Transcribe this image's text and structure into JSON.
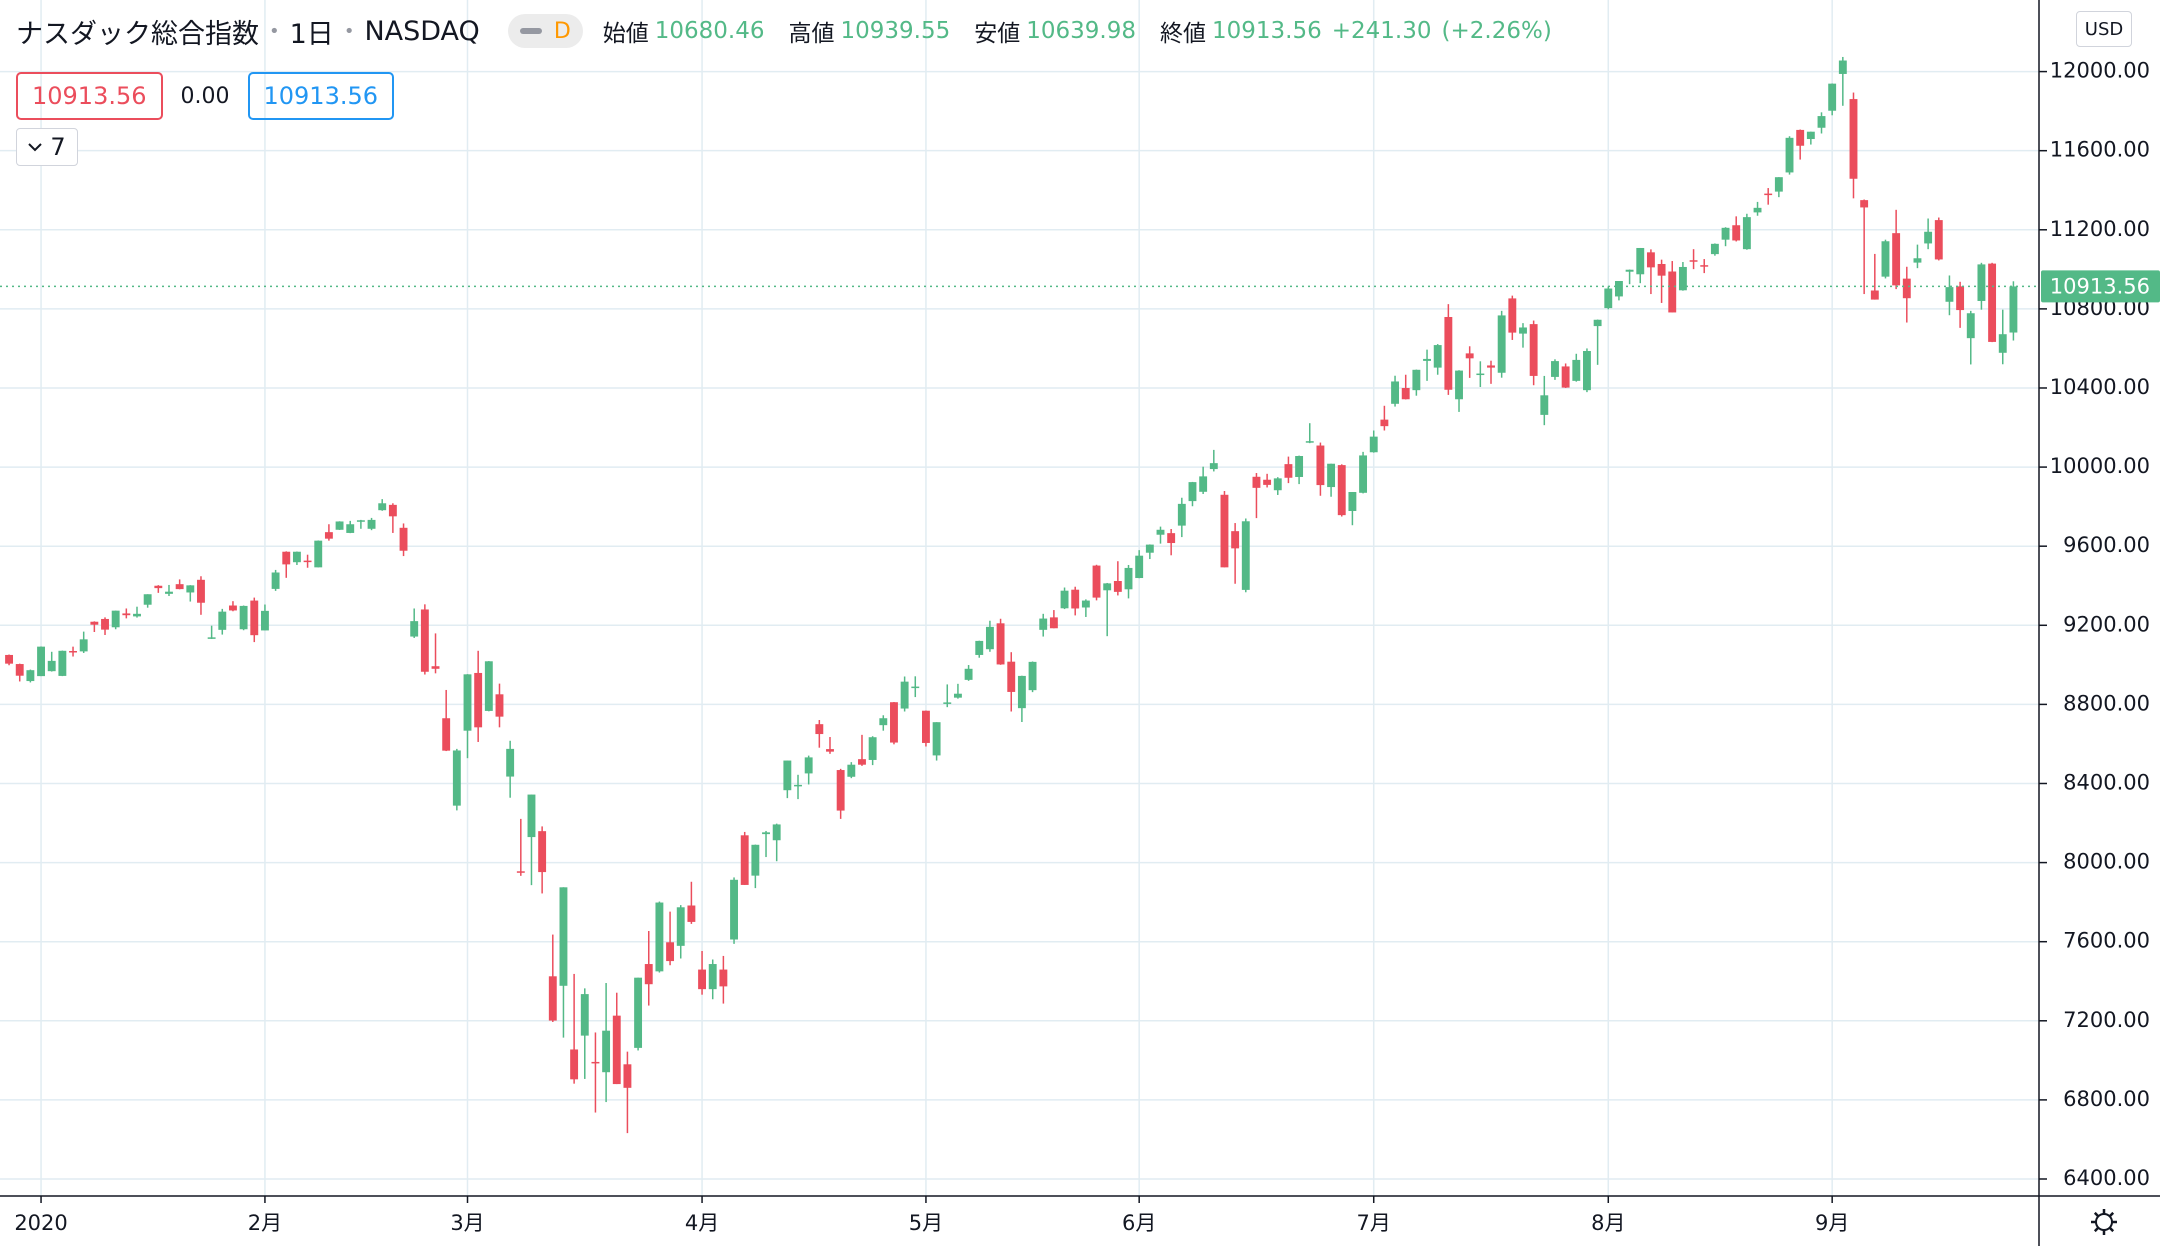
{
  "chart_data": {
    "type": "candlestick",
    "title": "ナスダック総合指数",
    "interval": "1日",
    "exchange": "NASDAQ",
    "badge": "D",
    "currency": "USD",
    "legend": [
      {
        "label": "始値",
        "value": "10680.46"
      },
      {
        "label": "高値",
        "value": "10939.55"
      },
      {
        "label": "安値",
        "value": "10639.98"
      },
      {
        "label": "終値",
        "value": "10913.56"
      }
    ],
    "change": "+241.30",
    "change_pct": "(+2.26%)",
    "price_boxes": [
      "10913.56",
      "0.00",
      "10913.56"
    ],
    "indicator_count": "7",
    "up_color": "#53b987",
    "down_color": "#eb4d5c",
    "grid": true,
    "last_price": 10913.56,
    "ylim": [
      6314,
      12362
    ],
    "yticks": [
      {
        "value": 6400,
        "label": "6400.00"
      },
      {
        "value": 6800,
        "label": "6800.00"
      },
      {
        "value": 7200,
        "label": "7200.00"
      },
      {
        "value": 7600,
        "label": "7600.00"
      },
      {
        "value": 8000,
        "label": "8000.00"
      },
      {
        "value": 8400,
        "label": "8400.00"
      },
      {
        "value": 8800,
        "label": "8800.00"
      },
      {
        "value": 9200,
        "label": "9200.00"
      },
      {
        "value": 9600,
        "label": "9600.00"
      },
      {
        "value": 10000,
        "label": "10000.00"
      },
      {
        "value": 10400,
        "label": "10400.00"
      },
      {
        "value": 10800,
        "label": "10800.00"
      },
      {
        "value": 11200,
        "label": "11200.00"
      },
      {
        "value": 11600,
        "label": "11600.00"
      },
      {
        "value": 12000,
        "label": "12000.00"
      }
    ],
    "xlim": [
      -0.85,
      190.4
    ],
    "xticks": [
      {
        "value": 3,
        "label": "2020"
      },
      {
        "value": 24,
        "label": "2月"
      },
      {
        "value": 43,
        "label": "3月"
      },
      {
        "value": 65,
        "label": "4月"
      },
      {
        "value": 86,
        "label": "5月"
      },
      {
        "value": 106,
        "label": "6月"
      },
      {
        "value": 128,
        "label": "7月"
      },
      {
        "value": 150,
        "label": "8月"
      },
      {
        "value": 171,
        "label": "9月"
      }
    ],
    "ohlc": [
      [
        9050,
        9052,
        8998,
        9006
      ],
      [
        9004,
        9006,
        8916,
        8945
      ],
      [
        8918,
        8976,
        8911,
        8973
      ],
      [
        8943,
        9093,
        8943,
        9092
      ],
      [
        8968,
        9066,
        8966,
        9020
      ],
      [
        8944,
        9072,
        8943,
        9071
      ],
      [
        9070,
        9092,
        9042,
        9068
      ],
      [
        9068,
        9168,
        9060,
        9129
      ],
      [
        9218,
        9220,
        9166,
        9203
      ],
      [
        9232,
        9240,
        9151,
        9178
      ],
      [
        9190,
        9274,
        9180,
        9274
      ],
      [
        9260,
        9285,
        9235,
        9251
      ],
      [
        9245,
        9294,
        9239,
        9258
      ],
      [
        9304,
        9357,
        9289,
        9357
      ],
      [
        9400,
        9403,
        9364,
        9388
      ],
      [
        9359,
        9404,
        9348,
        9370
      ],
      [
        9408,
        9432,
        9382,
        9383
      ],
      [
        9366,
        9403,
        9320,
        9402
      ],
      [
        9430,
        9448,
        9253,
        9314
      ],
      [
        9134,
        9198,
        9131,
        9139
      ],
      [
        9177,
        9283,
        9153,
        9269
      ],
      [
        9300,
        9322,
        9271,
        9275
      ],
      [
        9180,
        9300,
        9175,
        9298
      ],
      [
        9325,
        9340,
        9115,
        9150
      ],
      [
        9174,
        9305,
        9174,
        9273
      ],
      [
        9384,
        9480,
        9374,
        9467
      ],
      [
        9572,
        9574,
        9440,
        9508
      ],
      [
        9519,
        9573,
        9505,
        9572
      ],
      [
        9527,
        9557,
        9491,
        9520
      ],
      [
        9493,
        9629,
        9493,
        9628
      ],
      [
        9671,
        9711,
        9628,
        9638
      ],
      [
        9683,
        9726,
        9682,
        9725
      ],
      [
        9667,
        9728,
        9666,
        9711
      ],
      [
        9724,
        9733,
        9688,
        9731
      ],
      [
        9688,
        9743,
        9681,
        9733
      ],
      [
        9782,
        9838,
        9779,
        9817
      ],
      [
        9809,
        9817,
        9667,
        9751
      ],
      [
        9693,
        9715,
        9550,
        9577
      ],
      [
        9143,
        9285,
        9136,
        9221
      ],
      [
        9280,
        9306,
        8951,
        8965
      ],
      [
        8993,
        9159,
        8957,
        8980
      ],
      [
        8730,
        8873,
        8564,
        8566
      ],
      [
        8288,
        8575,
        8264,
        8567
      ],
      [
        8667,
        8953,
        8528,
        8952
      ],
      [
        8959,
        9071,
        8610,
        8684
      ],
      [
        8767,
        9019,
        8765,
        9018
      ],
      [
        8851,
        8905,
        8684,
        8738
      ],
      [
        8435,
        8616,
        8328,
        8575
      ],
      [
        7956,
        8221,
        7933,
        7950
      ],
      [
        8129,
        8344,
        7886,
        8344
      ],
      [
        8159,
        8183,
        7844,
        7952
      ],
      [
        7425,
        7636,
        7194,
        7201
      ],
      [
        7377,
        7875,
        7115,
        7875
      ],
      [
        7055,
        7437,
        6882,
        6904
      ],
      [
        7125,
        7364,
        6906,
        7335
      ],
      [
        6992,
        7141,
        6736,
        6989
      ],
      [
        6940,
        7391,
        6789,
        7150
      ],
      [
        7226,
        7342,
        6880,
        6880
      ],
      [
        6980,
        7044,
        6632,
        6861
      ],
      [
        7063,
        7418,
        7050,
        7418
      ],
      [
        7487,
        7654,
        7277,
        7385
      ],
      [
        7450,
        7803,
        7444,
        7798
      ],
      [
        7597,
        7752,
        7481,
        7502
      ],
      [
        7579,
        7785,
        7515,
        7774
      ],
      [
        7783,
        7903,
        7690,
        7700
      ],
      [
        7459,
        7553,
        7332,
        7360
      ],
      [
        7360,
        7510,
        7309,
        7487
      ],
      [
        7459,
        7528,
        7287,
        7374
      ],
      [
        7611,
        7925,
        7589,
        7913
      ],
      [
        8138,
        8155,
        7887,
        7887
      ],
      [
        7934,
        8091,
        7871,
        8090
      ],
      [
        8144,
        8160,
        8028,
        8153
      ],
      [
        8113,
        8197,
        8007,
        8193
      ],
      [
        8366,
        8516,
        8326,
        8516
      ],
      [
        8388,
        8444,
        8321,
        8393
      ],
      [
        8451,
        8541,
        8395,
        8532
      ],
      [
        8700,
        8721,
        8581,
        8650
      ],
      [
        8574,
        8635,
        8550,
        8561
      ],
      [
        8468,
        8474,
        8221,
        8263
      ],
      [
        8434,
        8508,
        8427,
        8495
      ],
      [
        8523,
        8646,
        8489,
        8495
      ],
      [
        8519,
        8639,
        8493,
        8634
      ],
      [
        8695,
        8745,
        8667,
        8730
      ],
      [
        8811,
        8812,
        8598,
        8607
      ],
      [
        8779,
        8941,
        8764,
        8915
      ],
      [
        8887,
        8942,
        8837,
        8890
      ],
      [
        8768,
        8769,
        8587,
        8605
      ],
      [
        8542,
        8710,
        8516,
        8710
      ],
      [
        8807,
        8901,
        8786,
        8810
      ],
      [
        8834,
        8904,
        8829,
        8854
      ],
      [
        8924,
        8999,
        8919,
        8980
      ],
      [
        9050,
        9122,
        9036,
        9121
      ],
      [
        9079,
        9223,
        9066,
        9192
      ],
      [
        9210,
        9233,
        9000,
        9002
      ],
      [
        9016,
        9064,
        8764,
        8863
      ],
      [
        8781,
        8945,
        8711,
        8944
      ],
      [
        8872,
        9017,
        8862,
        9015
      ],
      [
        9177,
        9258,
        9143,
        9234
      ],
      [
        9240,
        9277,
        9185,
        9185
      ],
      [
        9286,
        9391,
        9282,
        9375
      ],
      [
        9380,
        9395,
        9250,
        9285
      ],
      [
        9290,
        9331,
        9242,
        9325
      ],
      [
        9502,
        9506,
        9326,
        9340
      ],
      [
        9377,
        9414,
        9145,
        9412
      ],
      [
        9424,
        9524,
        9351,
        9369
      ],
      [
        9382,
        9505,
        9336,
        9490
      ],
      [
        9439,
        9580,
        9438,
        9552
      ],
      [
        9567,
        9609,
        9535,
        9608
      ],
      [
        9658,
        9699,
        9613,
        9683
      ],
      [
        9666,
        9687,
        9554,
        9616
      ],
      [
        9704,
        9845,
        9646,
        9814
      ],
      [
        9828,
        9925,
        9802,
        9924
      ],
      [
        9875,
        10002,
        9864,
        9953
      ],
      [
        9990,
        10087,
        9978,
        10020
      ],
      [
        9860,
        9879,
        9493,
        9493
      ],
      [
        9676,
        9717,
        9410,
        9589
      ],
      [
        9379,
        9740,
        9367,
        9726
      ],
      [
        9951,
        9970,
        9742,
        9895
      ],
      [
        9936,
        9966,
        9897,
        9910
      ],
      [
        9883,
        9949,
        9859,
        9943
      ],
      [
        10015,
        10053,
        9919,
        9946
      ],
      [
        9950,
        10058,
        9914,
        10056
      ],
      [
        10130,
        10222,
        10121,
        10131
      ],
      [
        10109,
        10124,
        9855,
        9909
      ],
      [
        9899,
        10017,
        9850,
        10017
      ],
      [
        10010,
        10014,
        9750,
        9757
      ],
      [
        9778,
        9874,
        9706,
        9874
      ],
      [
        9870,
        10077,
        9867,
        10059
      ],
      [
        10075,
        10185,
        10073,
        10154
      ],
      [
        10240,
        10310,
        10185,
        10207
      ],
      [
        10320,
        10462,
        10306,
        10433
      ],
      [
        10400,
        10467,
        10342,
        10343
      ],
      [
        10389,
        10493,
        10361,
        10492
      ],
      [
        10537,
        10594,
        10436,
        10547
      ],
      [
        10503,
        10622,
        10467,
        10617
      ],
      [
        10759,
        10824,
        10365,
        10391
      ],
      [
        10343,
        10490,
        10279,
        10488
      ],
      [
        10575,
        10611,
        10451,
        10550
      ],
      [
        10467,
        10535,
        10405,
        10473
      ],
      [
        10514,
        10538,
        10421,
        10503
      ],
      [
        10477,
        10790,
        10452,
        10767
      ],
      [
        10853,
        10867,
        10643,
        10680
      ],
      [
        10675,
        10728,
        10604,
        10706
      ],
      [
        10723,
        10741,
        10414,
        10461
      ],
      [
        10264,
        10461,
        10212,
        10363
      ],
      [
        10456,
        10545,
        10441,
        10536
      ],
      [
        10509,
        10524,
        10400,
        10402
      ],
      [
        10436,
        10573,
        10432,
        10542
      ],
      [
        10389,
        10600,
        10379,
        10587
      ],
      [
        10713,
        10746,
        10517,
        10745
      ],
      [
        10804,
        10913,
        10798,
        10903
      ],
      [
        10863,
        10941,
        10843,
        10941
      ],
      [
        10988,
        10999,
        10925,
        10998
      ],
      [
        10975,
        11108,
        10930,
        11108
      ],
      [
        11086,
        11101,
        10875,
        11010
      ],
      [
        11027,
        11049,
        10830,
        10968
      ],
      [
        10989,
        11042,
        10782,
        10782
      ],
      [
        10894,
        11037,
        10892,
        11012
      ],
      [
        11046,
        11102,
        11001,
        11042
      ],
      [
        11021,
        11052,
        10981,
        11019
      ],
      [
        11077,
        11131,
        11069,
        11129
      ],
      [
        11150,
        11213,
        11117,
        11210
      ],
      [
        11223,
        11268,
        11141,
        11146
      ],
      [
        11102,
        11281,
        11099,
        11264
      ],
      [
        11288,
        11341,
        11271,
        11311
      ],
      [
        11383,
        11411,
        11327,
        11379
      ],
      [
        11393,
        11466,
        11365,
        11466
      ],
      [
        11490,
        11673,
        11479,
        11665
      ],
      [
        11705,
        11707,
        11555,
        11625
      ],
      [
        11659,
        11696,
        11631,
        11696
      ],
      [
        11716,
        11794,
        11687,
        11775
      ],
      [
        11802,
        11940,
        11779,
        11939
      ],
      [
        11988,
        12074,
        11827,
        12056
      ],
      [
        11861,
        11894,
        11359,
        11458
      ],
      [
        11350,
        11353,
        10875,
        11313
      ],
      [
        10893,
        11078,
        10847,
        10847
      ],
      [
        10963,
        11150,
        10954,
        11142
      ],
      [
        11183,
        11301,
        10900,
        10919
      ],
      [
        10953,
        11013,
        10731,
        10854
      ],
      [
        11034,
        11125,
        11006,
        11056
      ],
      [
        11131,
        11257,
        11102,
        11190
      ],
      [
        11249,
        11262,
        11045,
        11050
      ],
      [
        10836,
        10969,
        10768,
        10910
      ],
      [
        10914,
        10937,
        10704,
        10794
      ],
      [
        10652,
        10790,
        10519,
        10778
      ],
      [
        10840,
        11033,
        10796,
        11025
      ],
      [
        11029,
        11033,
        10632,
        10633
      ],
      [
        10578,
        10796,
        10520,
        10672
      ],
      [
        10680.46,
        10939.55,
        10639.98,
        10913.56
      ]
    ]
  }
}
